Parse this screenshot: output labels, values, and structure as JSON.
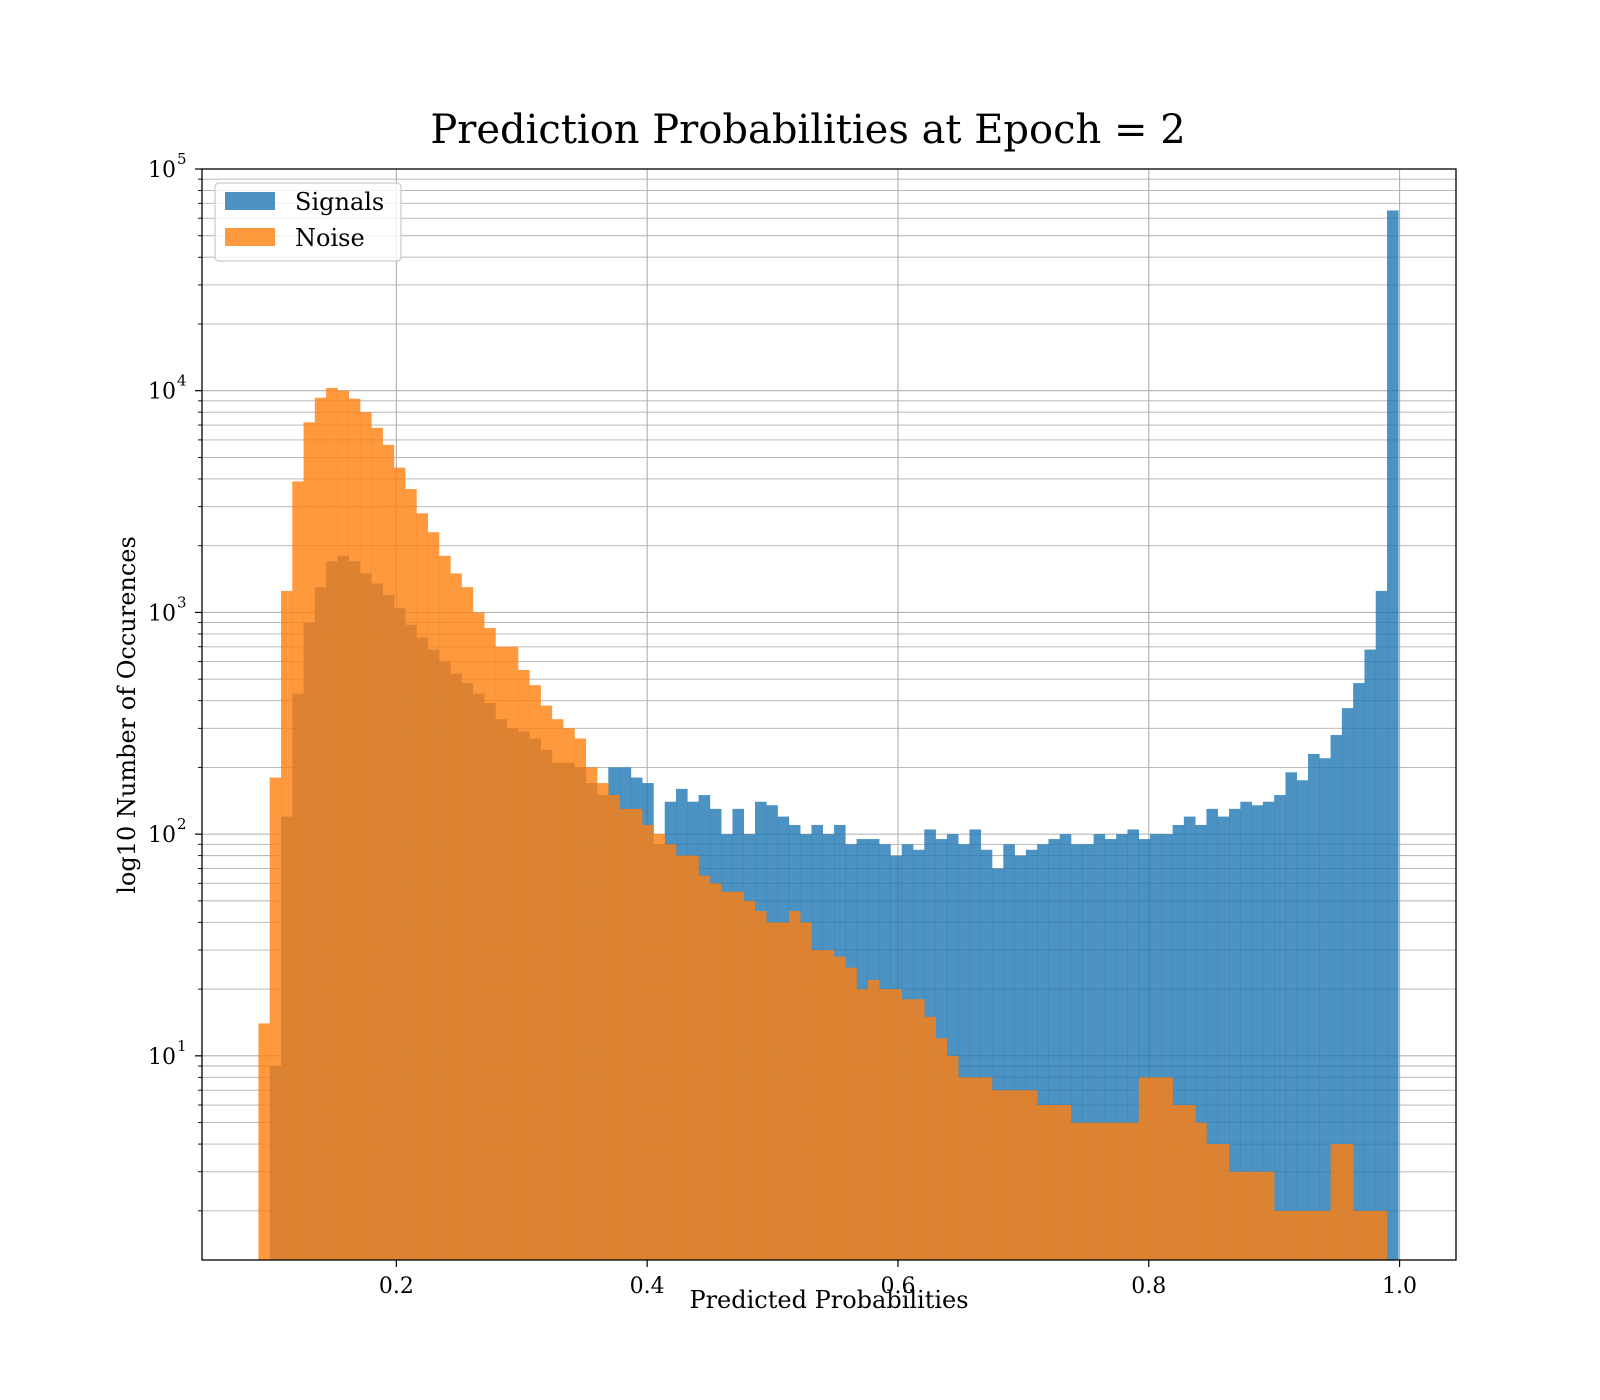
{
  "chart_data": {
    "type": "histogram",
    "title": "Prediction Probabilities at Epoch = 2",
    "xlabel": "Predicted Probabilities",
    "ylabel": "log10 Number of Occurences",
    "xlim": [
      0.045,
      1.045
    ],
    "ylim": [
      1.2,
      100000
    ],
    "yscale": "log",
    "grid": true,
    "legend_position": "top-left",
    "xticks": [
      {
        "value": 0.2,
        "label": "0.2"
      },
      {
        "value": 0.4,
        "label": "0.4"
      },
      {
        "value": 0.6,
        "label": "0.6"
      },
      {
        "value": 0.8,
        "label": "0.8"
      },
      {
        "value": 1.0,
        "label": "1.0"
      }
    ],
    "yticks": [
      {
        "value": 10,
        "base": "10",
        "exp": "1"
      },
      {
        "value": 100,
        "base": "10",
        "exp": "2"
      },
      {
        "value": 1000,
        "base": "10",
        "exp": "3"
      },
      {
        "value": 10000,
        "base": "10",
        "exp": "4"
      },
      {
        "value": 100000,
        "base": "10",
        "exp": "5"
      }
    ],
    "bin_start": 0.09,
    "bin_width": 0.009,
    "series": [
      {
        "name": "Signals",
        "color": "#1f77b4",
        "opacity": 0.8,
        "values": [
          0,
          9,
          120,
          430,
          900,
          1300,
          1700,
          1800,
          1700,
          1500,
          1350,
          1200,
          1050,
          880,
          770,
          680,
          600,
          530,
          480,
          430,
          390,
          330,
          300,
          290,
          270,
          240,
          210,
          210,
          200,
          170,
          150,
          200,
          200,
          180,
          170,
          90,
          140,
          160,
          140,
          150,
          130,
          100,
          130,
          100,
          140,
          135,
          120,
          110,
          100,
          110,
          100,
          110,
          90,
          95,
          95,
          90,
          80,
          90,
          85,
          105,
          95,
          100,
          90,
          105,
          85,
          70,
          90,
          80,
          85,
          90,
          95,
          100,
          90,
          90,
          100,
          95,
          100,
          105,
          95,
          100,
          100,
          110,
          120,
          110,
          130,
          120,
          130,
          140,
          135,
          140,
          150,
          190,
          175,
          230,
          220,
          280,
          370,
          480,
          680,
          1250,
          65000
        ]
      },
      {
        "name": "Noise",
        "color": "#ff7f0e",
        "opacity": 0.8,
        "values": [
          14,
          180,
          1250,
          3900,
          7200,
          9300,
          10300,
          10000,
          9200,
          8000,
          6800,
          5700,
          4500,
          3600,
          2800,
          2300,
          1800,
          1500,
          1300,
          1000,
          850,
          700,
          700,
          550,
          470,
          380,
          330,
          300,
          270,
          200,
          170,
          150,
          130,
          130,
          110,
          100,
          90,
          80,
          80,
          65,
          60,
          55,
          55,
          50,
          45,
          40,
          40,
          45,
          40,
          30,
          30,
          28,
          25,
          20,
          22,
          20,
          20,
          18,
          18,
          15,
          12,
          10,
          8,
          8,
          8,
          7,
          7,
          7,
          7,
          6,
          6,
          6,
          5,
          5,
          5,
          5,
          5,
          5,
          8,
          8,
          8,
          6,
          6,
          5,
          4,
          4,
          3,
          3,
          3,
          3,
          2,
          2,
          2,
          2,
          2,
          4,
          4,
          2,
          2,
          2,
          0
        ]
      }
    ]
  }
}
